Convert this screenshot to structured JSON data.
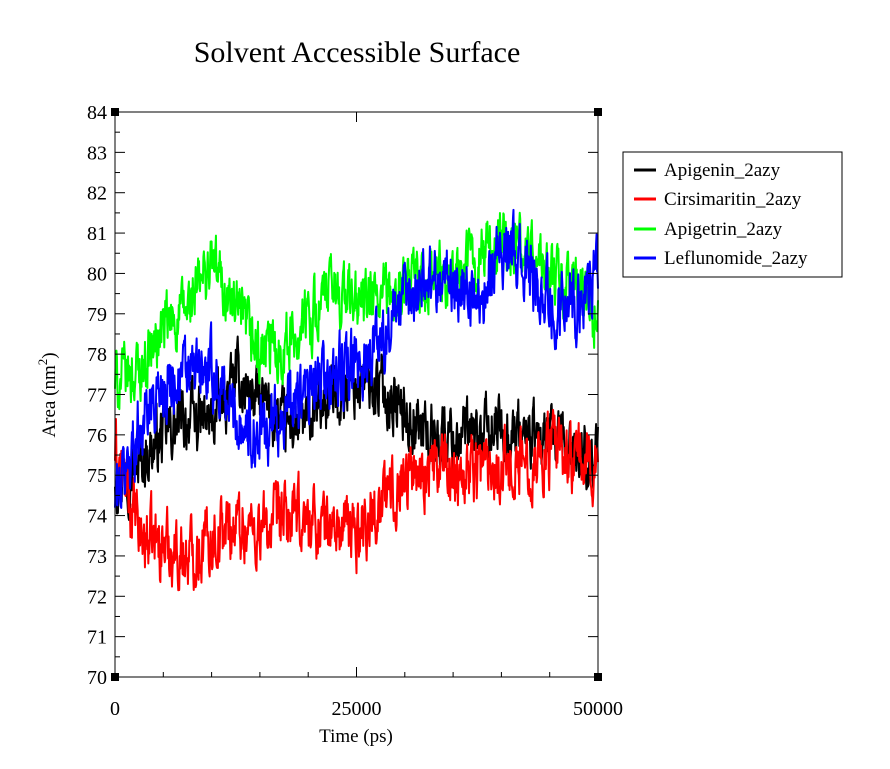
{
  "chart_data": {
    "type": "line",
    "title": "Solvent Accessible Surface",
    "xlabel": "Time (ps)",
    "ylabel_main": "Area (nm",
    "ylabel_sup": "2",
    "ylabel_close": ")",
    "xlim": [
      0,
      50000
    ],
    "ylim": [
      70,
      84
    ],
    "xticks": [
      0,
      25000,
      50000
    ],
    "xtick_labels": [
      "0",
      "25000",
      "50000"
    ],
    "yticks": [
      70,
      71,
      72,
      73,
      74,
      75,
      76,
      77,
      78,
      79,
      80,
      81,
      82,
      83,
      84
    ],
    "ytick_labels": [
      "70",
      "71",
      "72",
      "73",
      "74",
      "75",
      "76",
      "77",
      "78",
      "79",
      "80",
      "81",
      "82",
      "83",
      "84"
    ],
    "grid": false,
    "legend_position": "top-right",
    "series": [
      {
        "name": "Apigenin_2azy",
        "color": "#000000",
        "x": [
          0,
          2500,
          5000,
          7500,
          10000,
          12500,
          15000,
          17500,
          20000,
          22500,
          25000,
          27500,
          30000,
          32500,
          35000,
          37500,
          40000,
          42500,
          45000,
          47500,
          50000
        ],
        "values": [
          75.0,
          75.3,
          76.0,
          76.4,
          76.3,
          77.4,
          76.8,
          76.2,
          76.3,
          77.0,
          77.3,
          77.2,
          76.5,
          76.0,
          76.0,
          75.9,
          76.2,
          76.0,
          75.8,
          75.6,
          75.4
        ],
        "noise": 1.0
      },
      {
        "name": "Cirsimaritin_2azy",
        "color": "#ff0000",
        "x": [
          0,
          2500,
          5000,
          7500,
          10000,
          12500,
          15000,
          17500,
          20000,
          22500,
          25000,
          27500,
          30000,
          32500,
          35000,
          37500,
          40000,
          42500,
          45000,
          47500,
          50000
        ],
        "values": [
          75.6,
          73.5,
          73.3,
          73.0,
          73.5,
          73.8,
          73.6,
          73.9,
          73.9,
          73.7,
          73.6,
          74.3,
          75.0,
          75.2,
          75.1,
          75.3,
          75.3,
          75.3,
          75.6,
          75.4,
          75.3
        ],
        "noise": 1.1
      },
      {
        "name": "Apigetrin_2azy",
        "color": "#00ff00",
        "x": [
          0,
          2500,
          5000,
          7500,
          10000,
          12500,
          15000,
          17500,
          20000,
          22500,
          25000,
          27500,
          30000,
          32500,
          35000,
          37500,
          40000,
          42500,
          45000,
          47500,
          50000
        ],
        "values": [
          77.3,
          77.6,
          78.6,
          79.1,
          80.3,
          79.0,
          78.0,
          78.2,
          78.9,
          79.6,
          79.3,
          79.3,
          79.6,
          79.8,
          79.9,
          80.4,
          80.8,
          80.6,
          79.9,
          79.6,
          79.0
        ],
        "noise": 1.0
      },
      {
        "name": "Leflunomide_2azy",
        "color": "#0000ff",
        "x": [
          0,
          2500,
          5000,
          7500,
          10000,
          12500,
          15000,
          17500,
          20000,
          22500,
          25000,
          27500,
          30000,
          32500,
          35000,
          37500,
          40000,
          42500,
          45000,
          47500,
          50000
        ],
        "values": [
          74.3,
          76.2,
          77.3,
          77.5,
          77.5,
          76.5,
          75.9,
          76.6,
          77.0,
          77.5,
          77.6,
          78.4,
          79.3,
          80.0,
          79.8,
          79.3,
          80.8,
          80.1,
          79.3,
          79.3,
          79.9
        ],
        "noise": 1.1
      }
    ]
  }
}
